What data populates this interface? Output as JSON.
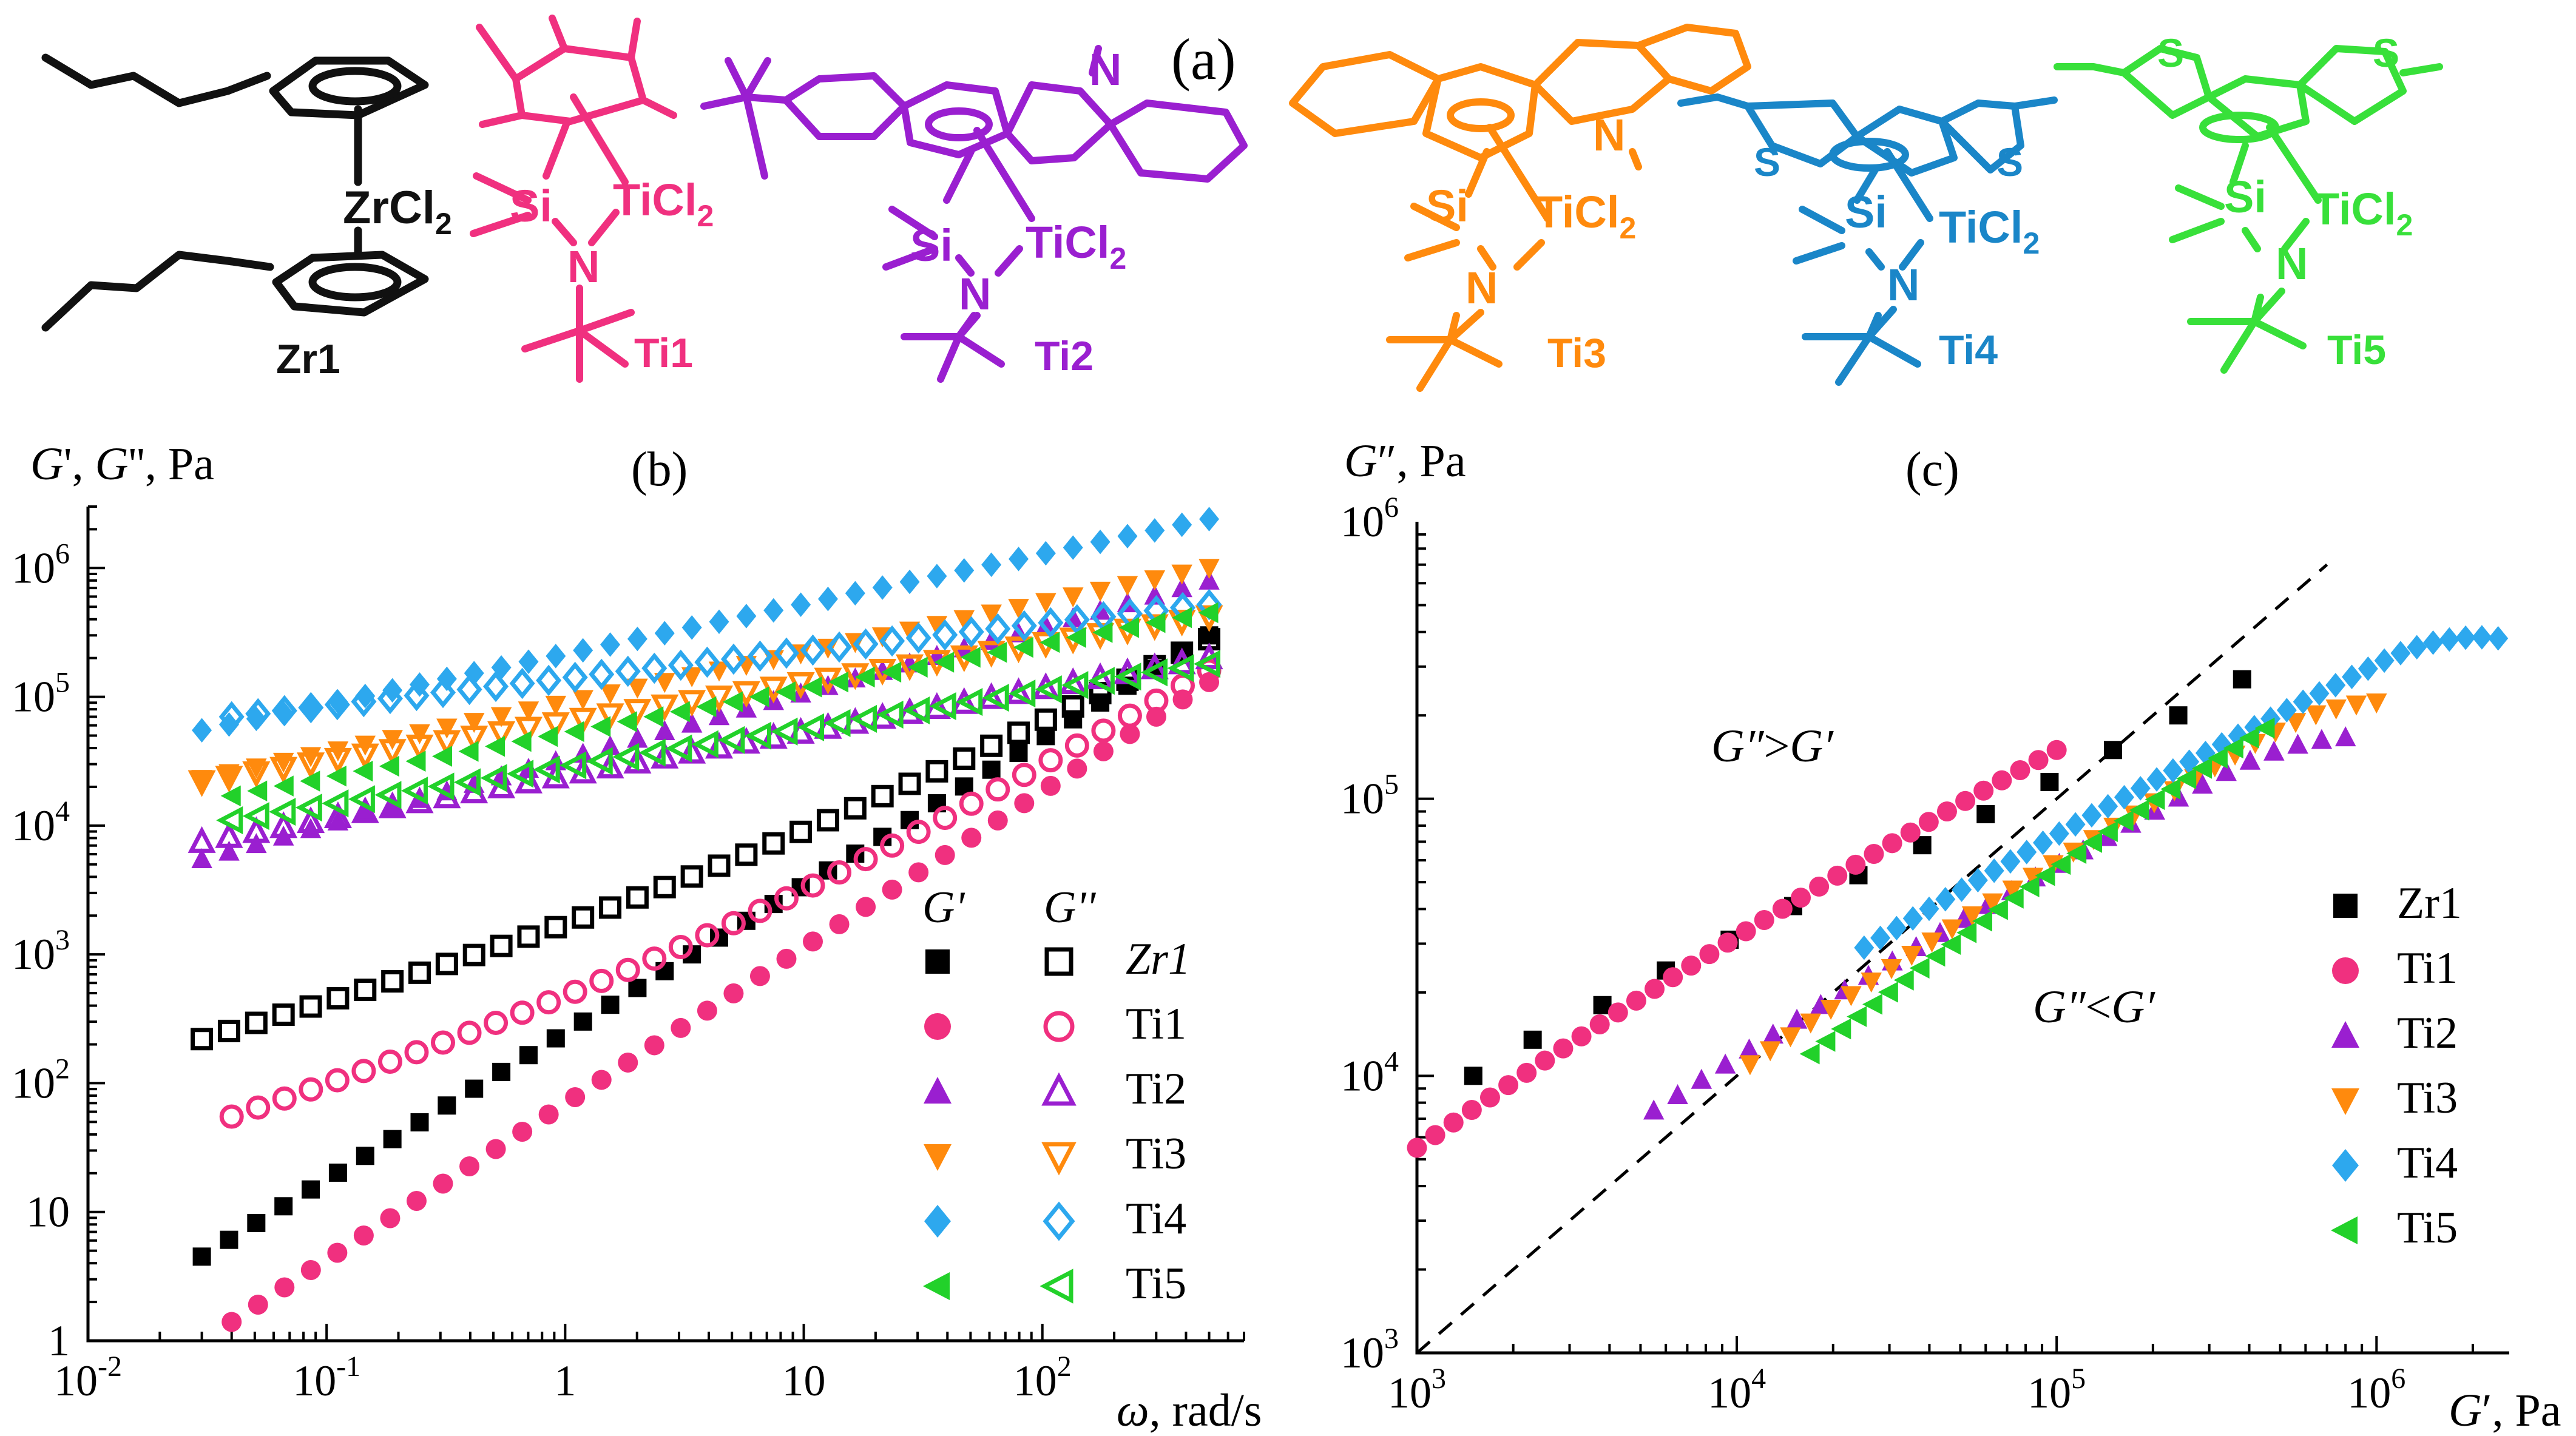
{
  "panel_labels": {
    "a": "(a)",
    "b": "(b)",
    "c": "(c)"
  },
  "molecules": [
    {
      "id": "Zr1",
      "color": "#111111",
      "metal_label": "ZrCl",
      "sub": "2"
    },
    {
      "id": "Ti1",
      "color": "#f0307f",
      "si": "Si",
      "n": "N",
      "metal_label": "TiCl",
      "sub": "2"
    },
    {
      "id": "Ti2",
      "color": "#9a1fd0",
      "si": "Si",
      "n": "N",
      "metal_label": "TiCl",
      "sub": "2"
    },
    {
      "id": "Ti3",
      "color": "#ff8a0d",
      "si": "Si",
      "n": "N",
      "metal_label": "TiCl",
      "sub": "2"
    },
    {
      "id": "Ti4",
      "color": "#1a86c8",
      "si": "Si",
      "n": "N",
      "metal_label": "TiCl",
      "sub": "2",
      "s": "S"
    },
    {
      "id": "Ti5",
      "color": "#38e03a",
      "si": "Si",
      "n": "N",
      "metal_label": "TiCl",
      "sub": "2",
      "s": "S"
    }
  ],
  "chart_data": [
    {
      "type": "scatter",
      "panel": "(b)",
      "ylabel": {
        "a": "G",
        "b": "', ",
        "c": "G",
        "d": "'', Pa"
      },
      "xlabel": {
        "a": "ω",
        "b": ", rad/s"
      },
      "xscale": "log",
      "yscale": "log",
      "xlim": [
        0.01,
        700
      ],
      "ylim": [
        1,
        3000000
      ],
      "xticks": [
        {
          "v": 0.01,
          "base": "10",
          "exp": "-2"
        },
        {
          "v": 0.1,
          "base": "10",
          "exp": "-1"
        },
        {
          "v": 1,
          "base": "1",
          "exp": ""
        },
        {
          "v": 10,
          "base": "10",
          "exp": ""
        },
        {
          "v": 100,
          "base": "10",
          "exp": "2"
        }
      ],
      "yticks": [
        {
          "v": 1,
          "base": "1",
          "exp": ""
        },
        {
          "v": 10,
          "base": "10",
          "exp": ""
        },
        {
          "v": 100,
          "base": "10",
          "exp": "2"
        },
        {
          "v": 1000,
          "base": "10",
          "exp": "3"
        },
        {
          "v": 10000,
          "base": "10",
          "exp": "4"
        },
        {
          "v": 100000,
          "base": "10",
          "exp": "5"
        },
        {
          "v": 1000000,
          "base": "10",
          "exp": "6"
        }
      ],
      "legend": {
        "placement": "bottom-right",
        "col1": "G'",
        "col2": "G''"
      },
      "series": [
        {
          "name": "Zr1",
          "color": "#000000",
          "marker": "square",
          "gp": {
            "x0": 0.03,
            "x1": 500,
            "y0": 4.5,
            "y1": 300000
          },
          "gpp": {
            "x0": 0.03,
            "x1": 500,
            "y0": 220,
            "y1": 280000
          }
        },
        {
          "name": "Ti1",
          "color": "#f0307f",
          "marker": "circle",
          "gp": {
            "x0": 0.04,
            "x1": 500,
            "y0": 1.4,
            "y1": 130000
          },
          "gpp": {
            "x0": 0.04,
            "x1": 500,
            "y0": 55,
            "y1": 160000
          }
        },
        {
          "name": "Ti2",
          "color": "#9a1fd0",
          "marker": "triangle-up",
          "gp": {
            "x0": 0.03,
            "x1": 500,
            "y0": 5500,
            "y1": 800000
          },
          "gpp": {
            "x0": 0.03,
            "x1": 500,
            "y0": 7500,
            "y1": 200000
          }
        },
        {
          "name": "Ti3",
          "color": "#ff8a0d",
          "marker": "triangle-down",
          "gp": {
            "x0": 0.03,
            "x1": 500,
            "y0": 23000,
            "y1": 1000000
          },
          "gpp": {
            "x0": 0.03,
            "x1": 500,
            "y0": 22000,
            "y1": 420000
          }
        },
        {
          "name": "Ti4",
          "color": "#2da8ee",
          "marker": "diamond",
          "gp": {
            "x0": 0.03,
            "x1": 500,
            "y0": 55000,
            "y1": 2400000
          },
          "gpp": {
            "x0": 0.04,
            "x1": 500,
            "y0": 70000,
            "y1": 520000
          }
        },
        {
          "name": "Ti5",
          "color": "#22d12a",
          "marker": "triangle-left",
          "gp": {
            "x0": 0.04,
            "x1": 500,
            "y0": 17000,
            "y1": 450000
          },
          "gpp": {
            "x0": 0.04,
            "x1": 500,
            "y0": 11000,
            "y1": 180000
          }
        }
      ]
    },
    {
      "type": "scatter",
      "panel": "(c)",
      "ylabel": {
        "a": "G",
        "b": "″, Pa"
      },
      "xlabel": {
        "a": "G",
        "b": "′, Pa"
      },
      "xscale": "log",
      "yscale": "log",
      "xlim": [
        1000,
        2600000
      ],
      "ylim": [
        1000,
        1000000
      ],
      "xticks": [
        {
          "v": 1000,
          "base": "10",
          "exp": "3"
        },
        {
          "v": 10000,
          "base": "10",
          "exp": "4"
        },
        {
          "v": 100000,
          "base": "10",
          "exp": "5"
        },
        {
          "v": 1000000,
          "base": "10",
          "exp": "6"
        }
      ],
      "yticks": [
        {
          "v": 1000,
          "base": "10",
          "exp": "3"
        },
        {
          "v": 10000,
          "base": "10",
          "exp": "4"
        },
        {
          "v": 100000,
          "base": "10",
          "exp": "5"
        },
        {
          "v": 1000000,
          "base": "10",
          "exp": "6"
        }
      ],
      "annotations": [
        {
          "a": "G″",
          "b": ">",
          "c": "G′"
        },
        {
          "a": "G″",
          "b": "<",
          "c": "G′"
        }
      ],
      "reference_line": "G″ = G′ (dashed)",
      "legend": {
        "placement": "bottom-right"
      },
      "series": [
        {
          "name": "Zr1",
          "color": "#000000",
          "marker": "square",
          "x": [
            1500,
            2300,
            3800,
            6000,
            9500,
            15000,
            24000,
            38000,
            60000,
            95000,
            150000,
            240000,
            380000
          ],
          "y": [
            10000,
            13500,
            18000,
            24000,
            31000,
            41000,
            53000,
            68000,
            88000,
            115000,
            150000,
            200000,
            270000
          ]
        },
        {
          "name": "Ti1",
          "color": "#f0307f",
          "marker": "circle",
          "x0": 1000,
          "x1": 100000,
          "y0": 5500,
          "y1": 150000,
          "n": 36
        },
        {
          "name": "Ti2",
          "color": "#9a1fd0",
          "marker": "triangle-up",
          "x0": 5500,
          "x1": 800000,
          "y0": 7500,
          "y1": 210000,
          "n": 30,
          "hook": 1
        },
        {
          "name": "Ti3",
          "color": "#ff8a0d",
          "marker": "triangle-down",
          "x0": 11000,
          "x1": 1000000,
          "y0": 11000,
          "y1": 280000,
          "n": 32,
          "hook": 1
        },
        {
          "name": "Ti4",
          "color": "#2da8ee",
          "marker": "diamond",
          "x0": 25000,
          "x1": 2400000,
          "y0": 29000,
          "y1": 500000,
          "n": 40,
          "hook": 2
        },
        {
          "name": "Ti5",
          "color": "#22d12a",
          "marker": "triangle-left",
          "x0": 17000,
          "x1": 450000,
          "y0": 12000,
          "y1": 180000,
          "n": 30
        }
      ]
    }
  ]
}
